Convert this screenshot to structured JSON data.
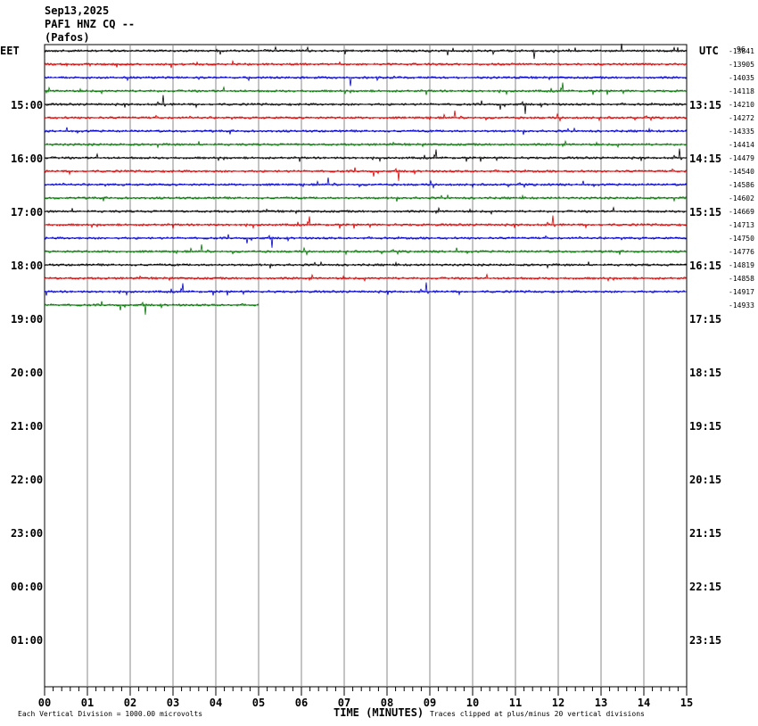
{
  "header": {
    "date": "Sep13,2025",
    "station": "PAF1 HNZ CQ --",
    "location": "(Pafos)"
  },
  "left_axis": {
    "label": "EET",
    "ticks": [
      "15:00",
      "16:00",
      "17:00",
      "18:00",
      "19:00",
      "20:00",
      "21:00",
      "22:00",
      "23:00",
      "00:00",
      "01:00"
    ]
  },
  "right_axis": {
    "label": "UTC",
    "ticks": [
      "13:15",
      "14:15",
      "15:15",
      "16:15",
      "17:15",
      "18:15",
      "19:15",
      "20:15",
      "21:15",
      "22:15",
      "23:15"
    ],
    "top_note": "96"
  },
  "traces": {
    "offsets": [
      "-13841",
      "-13905",
      "-14035",
      "-14118",
      "-14210",
      "-14272",
      "-14335",
      "-14414",
      "-14479",
      "-14540",
      "-14586",
      "-14602",
      "-14669",
      "-14713",
      "-14750",
      "-14776",
      "-14819",
      "-14858",
      "-14917",
      "-14933"
    ]
  },
  "x_axis": {
    "ticks": [
      "00",
      "01",
      "02",
      "03",
      "04",
      "05",
      "06",
      "07",
      "08",
      "09",
      "10",
      "11",
      "12",
      "13",
      "14",
      "15"
    ],
    "label": "TIME (MINUTES)"
  },
  "footer": {
    "left": "Each Vertical Division = 1000.00 microvolts",
    "right": "Traces clipped at plus/minus 20 vertical divisions"
  }
}
